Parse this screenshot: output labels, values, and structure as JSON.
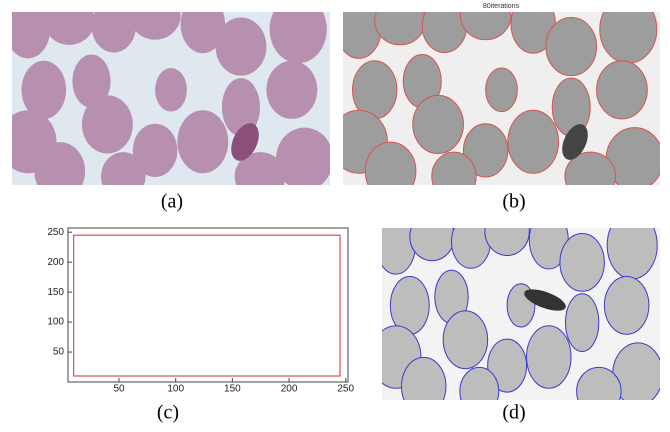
{
  "panels": [
    {
      "label": "(a)"
    },
    {
      "label": "(b)",
      "title": "80iterations"
    },
    {
      "label": "(c)",
      "plot": {
        "xlim": [
          5,
          252
        ],
        "ylim": [
          0,
          257
        ],
        "xticks": [
          50,
          100,
          150,
          200,
          250
        ],
        "yticks": [
          50,
          100,
          150,
          200,
          250
        ],
        "rectangle": {
          "x": [
            10,
            245
          ],
          "y": [
            10,
            245
          ],
          "color": "#d9534f"
        }
      }
    },
    {
      "label": "(d)"
    }
  ]
}
